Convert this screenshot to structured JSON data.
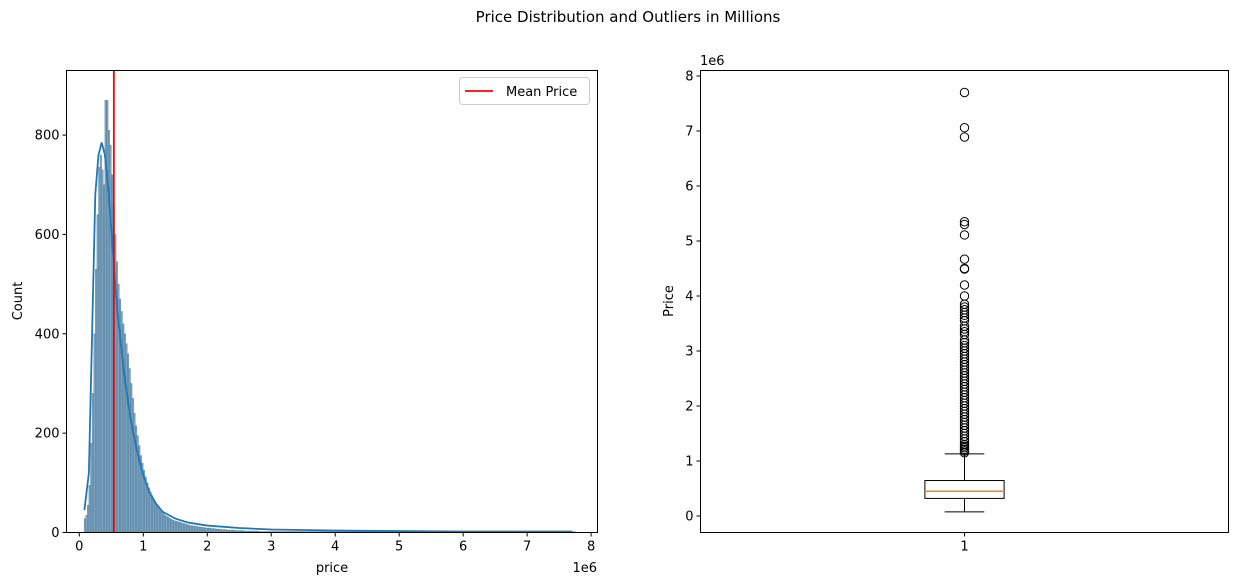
{
  "figure": {
    "suptitle": "Price Distribution and Outliers in Millions"
  },
  "chart_data": [
    {
      "type": "histogram",
      "xlabel": "price",
      "ylabel": "Count",
      "x_offset_label": "1e6",
      "xlim": [
        -0.2,
        8.1
      ],
      "ylim": [
        0,
        930
      ],
      "x_ticks": [
        0,
        1,
        2,
        3,
        4,
        5,
        6,
        7,
        8
      ],
      "x_tick_labels": [
        "0",
        "1",
        "2",
        "3",
        "4",
        "5",
        "6",
        "7",
        "8"
      ],
      "y_ticks": [
        0,
        200,
        400,
        600,
        800
      ],
      "y_tick_labels": [
        "0",
        "200",
        "400",
        "600",
        "800"
      ],
      "bar_color": "#5b8db0",
      "kde_color": "#1f77b4",
      "mean_line": {
        "x": 0.54,
        "color": "#ff0000",
        "label": "Mean Price"
      },
      "legend": {
        "position": "top-right",
        "entries": [
          "Mean Price"
        ]
      },
      "bins": {
        "start": 0.075,
        "width": 0.025,
        "counts": [
          28,
          35,
          55,
          95,
          180,
          280,
          400,
          530,
          640,
          735,
          760,
          730,
          700,
          870,
          870,
          810,
          780,
          720,
          660,
          600,
          545,
          500,
          470,
          445,
          420,
          400,
          380,
          360,
          330,
          300,
          270,
          240,
          215,
          195,
          175,
          155,
          140,
          125,
          112,
          100,
          90,
          82,
          74,
          67,
          60,
          54,
          49,
          45,
          41,
          38,
          35,
          33,
          31,
          29,
          27,
          25,
          24,
          23,
          22,
          21,
          20,
          19,
          18,
          17,
          16,
          15,
          14,
          14,
          13,
          13,
          12,
          12,
          11,
          11,
          10,
          10,
          9,
          9,
          9,
          8,
          8,
          8,
          7,
          7,
          7,
          6,
          6,
          6,
          6,
          5,
          5,
          5,
          5,
          5,
          4,
          4,
          4,
          4,
          4,
          4,
          3,
          3,
          3,
          3,
          3,
          3,
          3,
          3,
          3,
          2,
          2,
          2,
          2,
          2,
          2,
          2,
          2,
          2,
          2,
          2,
          2,
          2,
          2,
          2,
          2,
          2,
          2,
          2,
          2,
          2,
          2,
          2,
          2,
          2,
          2,
          2,
          2,
          2,
          2,
          2,
          2,
          2,
          2,
          2,
          2,
          2,
          2,
          2,
          2,
          2,
          2,
          2,
          2,
          2,
          2,
          2,
          2,
          2,
          2,
          2,
          2,
          2,
          2,
          2,
          2,
          2,
          2,
          2,
          2,
          2,
          2,
          2,
          2,
          2,
          2,
          2,
          2,
          2,
          2,
          2,
          2,
          2,
          2,
          2,
          2,
          2,
          2,
          2,
          2,
          2,
          2,
          2,
          2,
          2,
          2,
          2,
          2,
          2,
          2,
          2,
          2,
          2,
          2,
          2,
          2,
          2,
          2,
          2,
          2,
          2,
          2,
          2,
          2,
          2,
          2,
          2,
          2,
          2,
          2,
          2,
          2,
          2,
          2,
          2,
          2,
          2,
          2,
          2,
          2,
          2,
          2,
          2,
          2,
          2,
          2,
          2,
          2,
          2,
          2,
          2,
          2,
          2,
          2,
          2,
          2,
          2,
          2,
          2,
          2,
          2,
          2,
          2,
          2,
          2,
          2,
          2,
          2,
          2,
          2,
          2,
          2,
          2,
          2,
          2,
          2,
          2,
          2,
          2,
          2,
          2,
          2,
          2,
          2,
          2,
          2,
          2,
          2,
          2,
          2,
          2,
          2,
          2,
          2,
          2,
          2,
          2,
          2,
          2,
          2,
          2,
          2,
          2,
          2,
          2,
          2,
          2,
          2,
          2,
          2,
          2,
          2,
          2,
          2,
          2,
          2,
          2,
          2
        ]
      },
      "kde": {
        "x": [
          0.08,
          0.15,
          0.2,
          0.25,
          0.3,
          0.35,
          0.4,
          0.45,
          0.5,
          0.55,
          0.6,
          0.7,
          0.8,
          0.9,
          1.0,
          1.1,
          1.2,
          1.3,
          1.5,
          1.7,
          2.0,
          2.5,
          3.0,
          3.5,
          4.0,
          5.0,
          6.0,
          7.0,
          7.7
        ],
        "y": [
          45,
          120,
          400,
          680,
          760,
          785,
          760,
          700,
          610,
          520,
          440,
          320,
          230,
          165,
          115,
          80,
          58,
          42,
          28,
          20,
          14,
          9,
          6,
          5,
          4,
          3,
          2,
          2,
          2
        ]
      }
    },
    {
      "type": "boxplot",
      "ylabel": "Price",
      "y_offset_label": "1e6",
      "xlim": [
        0.5,
        1.5
      ],
      "ylim": [
        -0.3,
        8.1
      ],
      "x_ticks": [
        1
      ],
      "x_tick_labels": [
        "1"
      ],
      "y_ticks": [
        0,
        1,
        2,
        3,
        4,
        5,
        6,
        7,
        8
      ],
      "y_tick_labels": [
        "0",
        "1",
        "2",
        "3",
        "4",
        "5",
        "6",
        "7",
        "8"
      ],
      "box": {
        "x": 1,
        "q1": 0.32,
        "median": 0.45,
        "q3": 0.645,
        "whisker_low": 0.075,
        "whisker_high": 1.13
      },
      "median_color": "#ff7f0e",
      "outliers": [
        7.7,
        7.06,
        6.89,
        5.35,
        5.3,
        5.11,
        4.67,
        4.5,
        4.49,
        4.2,
        4.0,
        3.85,
        3.8,
        3.75,
        3.7,
        3.65,
        3.6,
        3.55,
        3.45,
        3.4,
        3.35,
        3.3,
        3.2,
        3.15,
        3.1,
        3.05,
        3.0,
        2.95,
        2.9,
        2.85,
        2.8,
        2.75,
        2.7,
        2.65,
        2.6,
        2.55,
        2.5,
        2.45,
        2.4,
        2.35,
        2.3,
        2.25,
        2.2,
        2.15,
        2.1,
        2.05,
        2.0,
        1.95,
        1.9,
        1.85,
        1.8,
        1.75,
        1.7,
        1.65,
        1.6,
        1.55,
        1.5,
        1.45,
        1.4,
        1.35,
        1.3,
        1.27,
        1.24,
        1.21,
        1.18,
        1.15
      ]
    }
  ]
}
